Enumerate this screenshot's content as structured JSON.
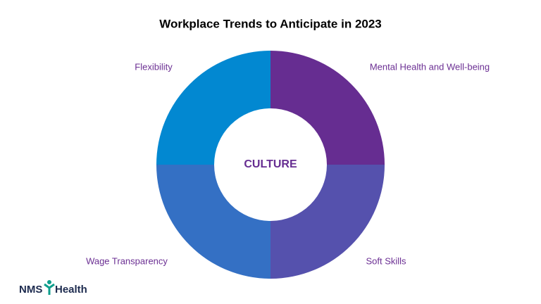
{
  "chart_data": {
    "type": "donut",
    "title": "Workplace Trends to Anticipate in 2023",
    "center_label": "CULTURE",
    "categories": [
      "Mental Health and Well-being",
      "Soft Skills",
      "Wage Transparency",
      "Flexibility"
    ],
    "values": [
      25,
      25,
      25,
      25
    ],
    "colors": [
      "#662d91",
      "#5551ad",
      "#3470c4",
      "#0288d1"
    ]
  },
  "logo": {
    "left": "NMS",
    "right": "Health"
  }
}
